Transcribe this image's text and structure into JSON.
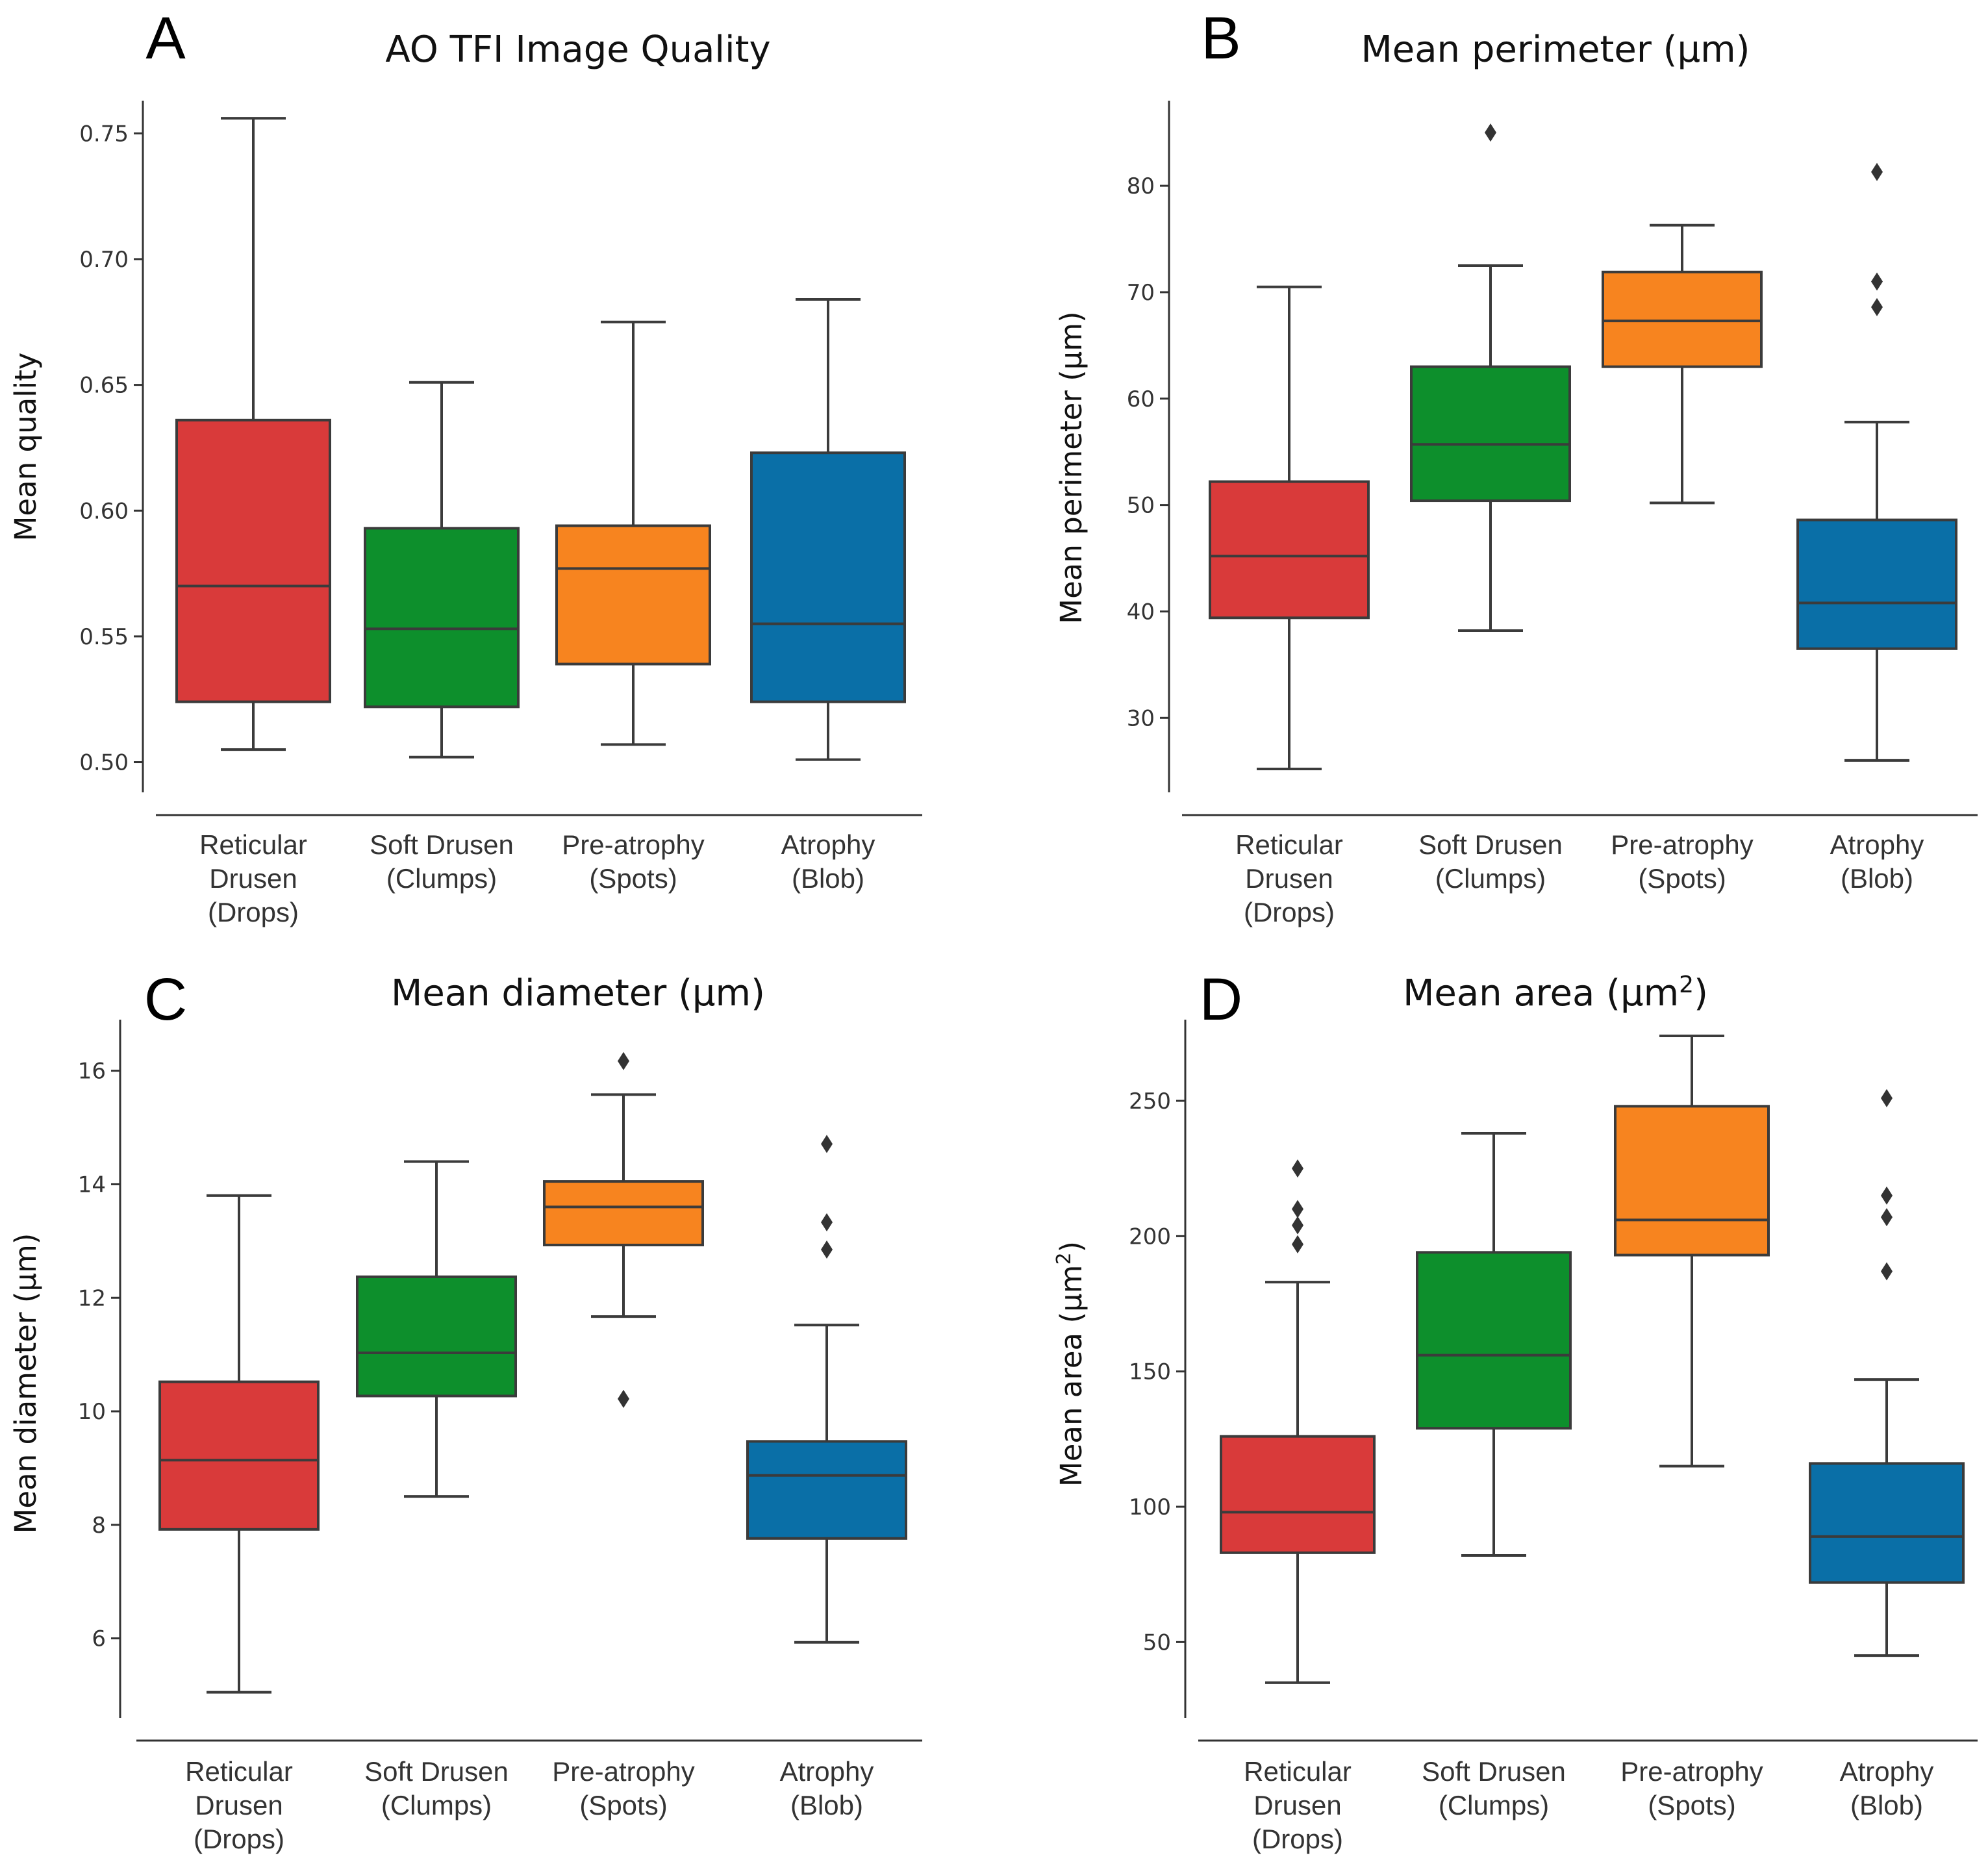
{
  "colors": {
    "reticular": "#d93a3a",
    "soft": "#0d8f2c",
    "preatrophy": "#f7841f",
    "atrophy": "#0a6fa7",
    "line": "#3b3b3b"
  },
  "chart_data": [
    {
      "type": "box",
      "panel": "A",
      "title": "AO TFI Image Quality",
      "title_sup": "",
      "ylabel": "Mean quality",
      "ylabel_sup": "",
      "ylabel_tail": "",
      "ylim": [
        0.488,
        0.763
      ],
      "yticks": [
        "0.50",
        "0.55",
        "0.60",
        "0.65",
        "0.70",
        "0.75"
      ],
      "categories": [
        [
          "Reticular",
          "Drusen",
          "(Drops)"
        ],
        [
          "Soft Drusen",
          "(Clumps)"
        ],
        [
          "Pre-atrophy",
          "(Spots)"
        ],
        [
          "Atrophy",
          "(Blob)"
        ]
      ],
      "boxes": [
        {
          "color": "reticular",
          "min": 0.505,
          "q1": 0.524,
          "median": 0.57,
          "q3": 0.636,
          "max": 0.756,
          "outliers": []
        },
        {
          "color": "soft",
          "min": 0.502,
          "q1": 0.522,
          "median": 0.553,
          "q3": 0.593,
          "max": 0.651,
          "outliers": []
        },
        {
          "color": "preatrophy",
          "min": 0.507,
          "q1": 0.539,
          "median": 0.577,
          "q3": 0.594,
          "max": 0.675,
          "outliers": []
        },
        {
          "color": "atrophy",
          "min": 0.501,
          "q1": 0.524,
          "median": 0.555,
          "q3": 0.623,
          "max": 0.684,
          "outliers": []
        }
      ]
    },
    {
      "type": "box",
      "panel": "B",
      "title": "Mean perimeter (μm)",
      "title_sup": "",
      "ylabel": "Mean perimeter (μm)",
      "ylabel_sup": "",
      "ylabel_tail": "",
      "ylim": [
        23.0,
        88.0
      ],
      "yticks": [
        "30",
        "40",
        "50",
        "60",
        "70",
        "80"
      ],
      "categories": [
        [
          "Reticular",
          "Drusen",
          "(Drops)"
        ],
        [
          "Soft Drusen",
          "(Clumps)"
        ],
        [
          "Pre-atrophy",
          "(Spots)"
        ],
        [
          "Atrophy",
          "(Blob)"
        ]
      ],
      "boxes": [
        {
          "color": "reticular",
          "min": 25.2,
          "q1": 39.4,
          "median": 45.2,
          "q3": 52.2,
          "max": 70.5,
          "outliers": []
        },
        {
          "color": "soft",
          "min": 38.2,
          "q1": 50.4,
          "median": 55.7,
          "q3": 63.0,
          "max": 72.5,
          "outliers": [
            85.0
          ]
        },
        {
          "color": "preatrophy",
          "min": 50.2,
          "q1": 63.0,
          "median": 67.3,
          "q3": 71.9,
          "max": 76.3,
          "outliers": []
        },
        {
          "color": "atrophy",
          "min": 26.0,
          "q1": 36.5,
          "median": 40.8,
          "q3": 48.6,
          "max": 57.8,
          "outliers": [
            68.6,
            71.0,
            81.3
          ]
        }
      ]
    },
    {
      "type": "box",
      "panel": "C",
      "title": "Mean diameter (μm)",
      "title_sup": "",
      "ylabel": "Mean diameter (μm)",
      "ylabel_sup": "",
      "ylabel_tail": "",
      "ylim": [
        4.6,
        16.9
      ],
      "yticks": [
        "6",
        "8",
        "10",
        "12",
        "14",
        "16"
      ],
      "categories": [
        [
          "Reticular",
          "Drusen",
          "(Drops)"
        ],
        [
          "Soft Drusen",
          "(Clumps)"
        ],
        [
          "Pre-atrophy",
          "(Spots)"
        ],
        [
          "Atrophy",
          "(Blob)"
        ]
      ],
      "boxes": [
        {
          "color": "reticular",
          "min": 5.05,
          "q1": 7.92,
          "median": 9.14,
          "q3": 10.52,
          "max": 13.8,
          "outliers": []
        },
        {
          "color": "soft",
          "min": 8.5,
          "q1": 10.27,
          "median": 11.03,
          "q3": 12.37,
          "max": 14.4,
          "outliers": []
        },
        {
          "color": "preatrophy",
          "min": 11.67,
          "q1": 12.93,
          "median": 13.6,
          "q3": 14.05,
          "max": 15.58,
          "outliers": [
            10.22,
            16.17
          ]
        },
        {
          "color": "atrophy",
          "min": 5.93,
          "q1": 7.76,
          "median": 8.87,
          "q3": 9.47,
          "max": 11.52,
          "outliers": [
            12.85,
            13.33,
            14.71
          ]
        }
      ]
    },
    {
      "type": "box",
      "panel": "D",
      "title": "Mean area (μm",
      "title_sup": "2",
      "title_tail": ")",
      "ylabel": "Mean area (μm",
      "ylabel_sup": "2",
      "ylabel_tail": ")",
      "ylim": [
        22.0,
        280.0
      ],
      "yticks": [
        "50",
        "100",
        "150",
        "200",
        "250"
      ],
      "categories": [
        [
          "Reticular",
          "Drusen",
          "(Drops)"
        ],
        [
          "Soft Drusen",
          "(Clumps)"
        ],
        [
          "Pre-atrophy",
          "(Spots)"
        ],
        [
          "Atrophy",
          "(Blob)"
        ]
      ],
      "boxes": [
        {
          "color": "reticular",
          "min": 35.0,
          "q1": 83.0,
          "median": 98.0,
          "q3": 126.0,
          "max": 183.0,
          "outliers": [
            197.0,
            204.0,
            210.0,
            225.0
          ]
        },
        {
          "color": "soft",
          "min": 82.0,
          "q1": 129.0,
          "median": 156.0,
          "q3": 194.0,
          "max": 238.0,
          "outliers": []
        },
        {
          "color": "preatrophy",
          "min": 115.0,
          "q1": 193.0,
          "median": 206.0,
          "q3": 248.0,
          "max": 274.0,
          "outliers": []
        },
        {
          "color": "atrophy",
          "min": 45.0,
          "q1": 72.0,
          "median": 89.0,
          "q3": 116.0,
          "max": 147.0,
          "outliers": [
            187.0,
            207.0,
            215.0,
            251.0
          ]
        }
      ]
    }
  ]
}
